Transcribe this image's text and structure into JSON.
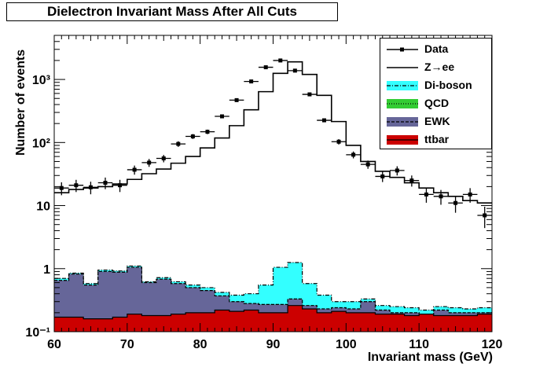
{
  "chart_data": {
    "type": "histogram",
    "title": "Dielectron Invariant Mass After All Cuts",
    "xlabel": "Invariant mass (GeV)",
    "ylabel": "Number of events",
    "xlim": [
      60,
      120
    ],
    "ylim": [
      0.1,
      5000
    ],
    "yscale": "log",
    "x_ticks": [
      "60",
      "70",
      "80",
      "90",
      "100",
      "110",
      "120"
    ],
    "y_ticks": [
      {
        "value": 0.1,
        "label": "10⁻¹"
      },
      {
        "value": 1,
        "label": "1"
      },
      {
        "value": 10,
        "label": "10"
      },
      {
        "value": 100,
        "label": "10²"
      },
      {
        "value": 1000,
        "label": "10³"
      }
    ],
    "bin_edges": [
      60,
      62,
      64,
      66,
      68,
      70,
      72,
      74,
      76,
      78,
      80,
      82,
      84,
      86,
      88,
      90,
      92,
      94,
      96,
      98,
      100,
      102,
      104,
      106,
      108,
      110,
      112,
      114,
      116,
      118,
      120
    ],
    "legend": {
      "position": "top-right",
      "entries": [
        {
          "key": "data",
          "label": "Data"
        },
        {
          "key": "zee",
          "label": "Z→ee"
        },
        {
          "key": "diboson",
          "label": "Di-boson"
        },
        {
          "key": "qcd",
          "label": "QCD"
        },
        {
          "key": "ewk",
          "label": "EWK"
        },
        {
          "key": "ttbar",
          "label": "ttbar"
        }
      ]
    },
    "colors": {
      "diboson": "#33ffff",
      "qcd": "#33cc33",
      "ewk": "#666699",
      "ttbar": "#cc0000",
      "zee": "#000000",
      "data": "#000000"
    },
    "series": [
      {
        "name": "Z→ee",
        "type": "step",
        "values": [
          16,
          18,
          19,
          20,
          22,
          26,
          32,
          38,
          47,
          60,
          82,
          118,
          185,
          330,
          640,
          1250,
          1900,
          1200,
          560,
          215,
          90,
          50,
          35,
          28,
          23,
          19,
          16,
          14,
          12,
          11
        ]
      },
      {
        "name": "ttbar",
        "type": "stacked-fill",
        "values": [
          0.17,
          0.17,
          0.16,
          0.16,
          0.17,
          0.19,
          0.18,
          0.18,
          0.19,
          0.2,
          0.2,
          0.22,
          0.21,
          0.22,
          0.2,
          0.2,
          0.26,
          0.23,
          0.2,
          0.21,
          0.2,
          0.2,
          0.19,
          0.19,
          0.18,
          0.19,
          0.18,
          0.18,
          0.18,
          0.19
        ]
      },
      {
        "name": "EWK",
        "type": "stacked-fill",
        "values": [
          0.65,
          0.82,
          0.55,
          0.9,
          0.88,
          1.05,
          0.6,
          0.68,
          0.58,
          0.5,
          0.45,
          0.37,
          0.3,
          0.28,
          0.27,
          0.27,
          0.33,
          0.26,
          0.23,
          0.24,
          0.23,
          0.3,
          0.22,
          0.2,
          0.2,
          0.19,
          0.22,
          0.2,
          0.2,
          0.2
        ]
      },
      {
        "name": "QCD",
        "type": "stacked-fill",
        "values": [
          0.65,
          0.82,
          0.55,
          0.9,
          0.88,
          1.05,
          0.6,
          0.68,
          0.58,
          0.5,
          0.45,
          0.37,
          0.3,
          0.28,
          0.27,
          0.27,
          0.33,
          0.26,
          0.23,
          0.24,
          0.23,
          0.3,
          0.22,
          0.2,
          0.2,
          0.19,
          0.22,
          0.2,
          0.2,
          0.2
        ]
      },
      {
        "name": "Di-boson",
        "type": "stacked-fill",
        "values": [
          0.7,
          0.85,
          0.58,
          0.95,
          0.92,
          1.1,
          0.62,
          0.72,
          0.62,
          0.55,
          0.5,
          0.42,
          0.38,
          0.4,
          0.55,
          1.05,
          1.25,
          0.58,
          0.38,
          0.3,
          0.3,
          0.33,
          0.26,
          0.25,
          0.24,
          0.22,
          0.25,
          0.24,
          0.23,
          0.24
        ]
      },
      {
        "name": "Data",
        "type": "points-with-errors",
        "x": [
          61,
          63,
          65,
          67,
          69,
          71,
          73,
          75,
          77,
          79,
          81,
          83,
          85,
          87,
          89,
          91,
          93,
          95,
          97,
          99,
          101,
          103,
          105,
          107,
          109,
          111,
          113,
          115,
          117,
          119
        ],
        "values": [
          19,
          21,
          19.5,
          23,
          21,
          37,
          48,
          56,
          95,
          125,
          148,
          260,
          470,
          930,
          1560,
          2000,
          1380,
          580,
          225,
          103,
          64,
          45,
          29,
          36,
          25,
          15,
          14,
          11,
          15,
          7
        ],
        "errors": [
          4.4,
          4.6,
          4.4,
          4.8,
          4.6,
          6.1,
          6.9,
          7.5,
          9.7,
          11.2,
          12.2,
          16.1,
          21.7,
          30.5,
          39.5,
          44.7,
          37.1,
          24.1,
          15,
          10.1,
          8,
          6.7,
          5.4,
          6,
          5,
          3.9,
          3.7,
          3.3,
          3.9,
          2.6
        ]
      }
    ]
  }
}
